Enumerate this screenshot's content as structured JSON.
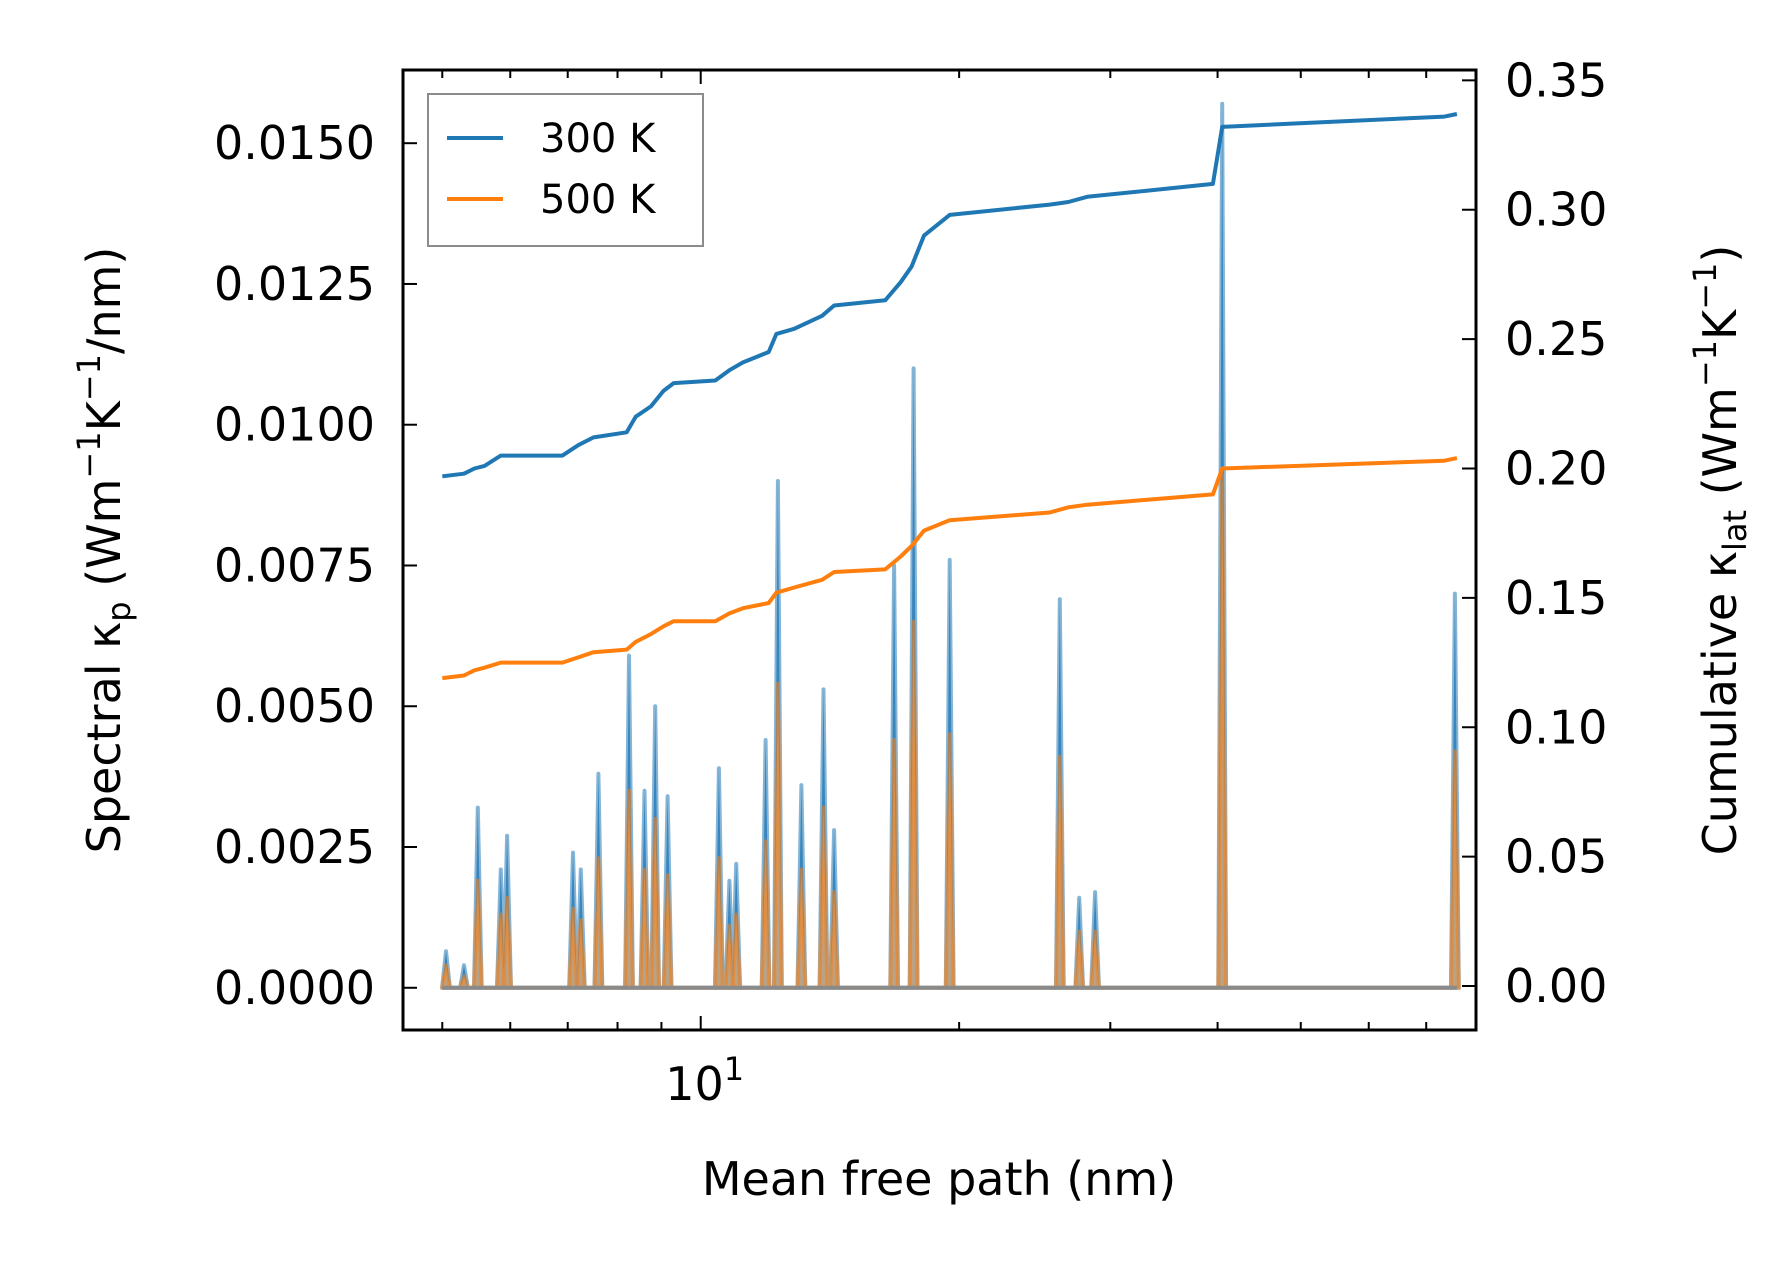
{
  "chart_data": {
    "type": "line",
    "x_scale": "log",
    "xlim": [
      4.5,
      80
    ],
    "x_ticks": [
      {
        "value": 10,
        "base": "10",
        "exp": "1"
      }
    ],
    "xlabel": "Mean free path (nm)",
    "ylabel_left": {
      "pre": "Spectral κ",
      "sub": "p",
      "mid": " (Wm",
      "sup1": "−1",
      "k": "K",
      "sup2": "−1",
      "post": "/nm)"
    },
    "ylabel_right": {
      "pre": "Cumulative κ",
      "sub": "lat",
      "mid": " (Wm",
      "sup1": "−1",
      "k": "K",
      "sup2": "−1",
      "post": ")"
    },
    "ylim_left": [
      -0.00075,
      0.0163
    ],
    "ylim_right": [
      -0.017,
      0.354
    ],
    "yticks_left": [
      "0.0000",
      "0.0025",
      "0.0050",
      "0.0075",
      "0.0100",
      "0.0125",
      "0.0150"
    ],
    "yticks_right": [
      "0.00",
      "0.05",
      "0.10",
      "0.15",
      "0.20",
      "0.25",
      "0.30",
      "0.35"
    ],
    "colors": {
      "300K": "#1f77b4",
      "500K": "#ff7f0e",
      "fill": "#c9a47c"
    },
    "legend": {
      "position": "top-left",
      "entries": [
        "300 K",
        "500 K"
      ]
    },
    "spectral_x_range": [
      5.0,
      76.0
    ],
    "spectral_series": [
      {
        "name": "300 K",
        "peaks": [
          [
            5.05,
            0.00065
          ],
          [
            5.3,
            0.0004
          ],
          [
            5.5,
            0.0032
          ],
          [
            5.85,
            0.0021
          ],
          [
            5.95,
            0.0027
          ],
          [
            7.1,
            0.0024
          ],
          [
            7.25,
            0.0021
          ],
          [
            7.6,
            0.0038
          ],
          [
            8.25,
            0.0059
          ],
          [
            8.6,
            0.0035
          ],
          [
            8.85,
            0.005
          ],
          [
            9.15,
            0.0034
          ],
          [
            10.5,
            0.0039
          ],
          [
            10.8,
            0.0019
          ],
          [
            11.0,
            0.0022
          ],
          [
            11.9,
            0.0044
          ],
          [
            12.3,
            0.009
          ],
          [
            13.1,
            0.0036
          ],
          [
            13.9,
            0.0053
          ],
          [
            14.3,
            0.0028
          ],
          [
            16.8,
            0.0075
          ],
          [
            17.7,
            0.011
          ],
          [
            19.5,
            0.0076
          ],
          [
            26.2,
            0.0069
          ],
          [
            27.6,
            0.0016
          ],
          [
            28.8,
            0.0017
          ],
          [
            40.5,
            0.0157
          ],
          [
            75.6,
            0.007
          ]
        ]
      },
      {
        "name": "500 K",
        "peaks": [
          [
            5.05,
            0.0004
          ],
          [
            5.3,
            0.0002
          ],
          [
            5.5,
            0.0019
          ],
          [
            5.85,
            0.0013
          ],
          [
            5.95,
            0.0016
          ],
          [
            7.1,
            0.0014
          ],
          [
            7.25,
            0.0012
          ],
          [
            7.6,
            0.0023
          ],
          [
            8.25,
            0.0035
          ],
          [
            8.6,
            0.0021
          ],
          [
            8.85,
            0.003
          ],
          [
            9.15,
            0.002
          ],
          [
            10.5,
            0.0023
          ],
          [
            10.8,
            0.0011
          ],
          [
            11.0,
            0.0013
          ],
          [
            11.9,
            0.0026
          ],
          [
            12.3,
            0.0054
          ],
          [
            13.1,
            0.0021
          ],
          [
            13.9,
            0.0032
          ],
          [
            14.3,
            0.0017
          ],
          [
            16.8,
            0.0044
          ],
          [
            17.7,
            0.0065
          ],
          [
            19.5,
            0.0045
          ],
          [
            26.2,
            0.0041
          ],
          [
            27.6,
            0.001
          ],
          [
            28.8,
            0.001
          ],
          [
            40.5,
            0.0091
          ],
          [
            75.6,
            0.0042
          ]
        ]
      }
    ],
    "cumulative_series": [
      {
        "name": "300 K",
        "points": [
          [
            5.0,
            0.197
          ],
          [
            5.3,
            0.198
          ],
          [
            5.45,
            0.2
          ],
          [
            5.6,
            0.201
          ],
          [
            5.85,
            0.205
          ],
          [
            6.9,
            0.205
          ],
          [
            7.2,
            0.209
          ],
          [
            7.5,
            0.212
          ],
          [
            8.2,
            0.214
          ],
          [
            8.4,
            0.22
          ],
          [
            8.75,
            0.224
          ],
          [
            9.05,
            0.23
          ],
          [
            9.3,
            0.233
          ],
          [
            10.4,
            0.234
          ],
          [
            10.8,
            0.238
          ],
          [
            11.2,
            0.241
          ],
          [
            12.0,
            0.245
          ],
          [
            12.25,
            0.252
          ],
          [
            12.85,
            0.254
          ],
          [
            13.85,
            0.259
          ],
          [
            14.3,
            0.263
          ],
          [
            16.4,
            0.265
          ],
          [
            17.1,
            0.272
          ],
          [
            17.6,
            0.278
          ],
          [
            18.2,
            0.29
          ],
          [
            19.5,
            0.298
          ],
          [
            25.5,
            0.302
          ],
          [
            26.8,
            0.303
          ],
          [
            28.2,
            0.305
          ],
          [
            39.5,
            0.31
          ],
          [
            40.5,
            0.332
          ],
          [
            73.5,
            0.336
          ],
          [
            76.0,
            0.337
          ]
        ]
      },
      {
        "name": "500 K",
        "points": [
          [
            5.0,
            0.119
          ],
          [
            5.3,
            0.12
          ],
          [
            5.45,
            0.122
          ],
          [
            5.6,
            0.123
          ],
          [
            5.85,
            0.125
          ],
          [
            6.9,
            0.125
          ],
          [
            7.2,
            0.127
          ],
          [
            7.5,
            0.129
          ],
          [
            8.2,
            0.13
          ],
          [
            8.4,
            0.133
          ],
          [
            8.75,
            0.136
          ],
          [
            9.05,
            0.139
          ],
          [
            9.3,
            0.141
          ],
          [
            10.4,
            0.141
          ],
          [
            10.8,
            0.144
          ],
          [
            11.2,
            0.146
          ],
          [
            12.0,
            0.148
          ],
          [
            12.25,
            0.152
          ],
          [
            12.85,
            0.154
          ],
          [
            13.85,
            0.157
          ],
          [
            14.3,
            0.16
          ],
          [
            16.4,
            0.161
          ],
          [
            17.1,
            0.166
          ],
          [
            17.6,
            0.17
          ],
          [
            18.2,
            0.176
          ],
          [
            19.5,
            0.18
          ],
          [
            25.5,
            0.183
          ],
          [
            26.8,
            0.185
          ],
          [
            28.2,
            0.186
          ],
          [
            39.5,
            0.19
          ],
          [
            40.5,
            0.2
          ],
          [
            73.5,
            0.203
          ],
          [
            76.0,
            0.204
          ]
        ]
      }
    ]
  }
}
